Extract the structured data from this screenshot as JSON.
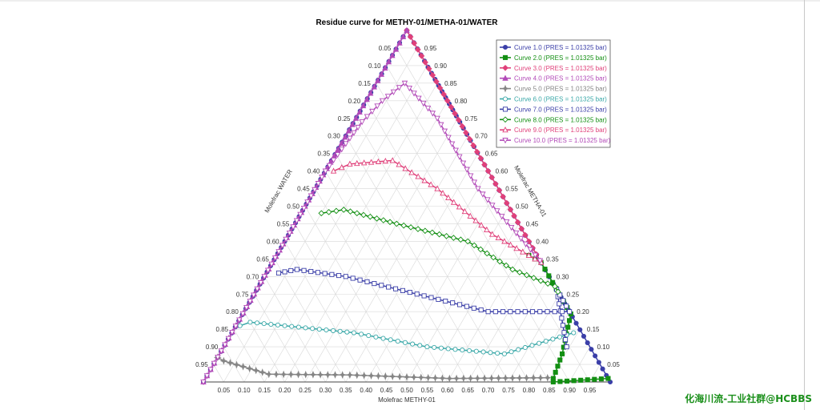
{
  "watermark": "化海川流-工业社群@HCBBS",
  "chart_data": {
    "type": "ternary-line",
    "title": "Residue curve for METHY-01/METHA-01/WATER",
    "xlabel": "Molefrac METHY-01",
    "left_axis_label": "Molefrac WATER",
    "right_axis_label": "Molefrac METHA-01",
    "bottom_ticks": [
      "0.05",
      "0.10",
      "0.15",
      "0.20",
      "0.25",
      "0.30",
      "0.35",
      "0.40",
      "0.45",
      "0.50",
      "0.55",
      "0.60",
      "0.65",
      "0.70",
      "0.75",
      "0.80",
      "0.85",
      "0.90",
      "0.95"
    ],
    "left_ticks": [
      "0.05",
      "0.10",
      "0.15",
      "0.20",
      "0.25",
      "0.30",
      "0.35",
      "0.40",
      "0.45",
      "0.50",
      "0.55",
      "0.60",
      "0.65",
      "0.70",
      "0.75",
      "0.80",
      "0.85",
      "0.90",
      "0.95"
    ],
    "right_ticks": [
      "0.05",
      "0.10",
      "0.15",
      "0.20",
      "0.25",
      "0.30",
      "0.35",
      "0.40",
      "0.45",
      "0.50",
      "0.55",
      "0.60",
      "0.65",
      "0.70",
      "0.75",
      "0.80",
      "0.85",
      "0.90",
      "0.95"
    ],
    "grid": true,
    "legend_position": "top-right",
    "series": [
      {
        "name": "Curve  1.0 (PRES = 1.01325 bar)",
        "color": "#3b3fa8",
        "marker": "circle",
        "fill": true,
        "points": [
          [
            1,
            0,
            0
          ],
          [
            0.87,
            0.13,
            0
          ],
          [
            0.74,
            0.26,
            0
          ],
          [
            0.662,
            0.338,
            0
          ],
          [
            0.638,
            0.362,
            0
          ],
          [
            0.4,
            0.6,
            0
          ],
          [
            0,
            1,
            0
          ],
          [
            0,
            0.4,
            0.6
          ],
          [
            0,
            0,
            1
          ]
        ]
      },
      {
        "name": "Curve  2.0 (PRES = 1.01325 bar)",
        "color": "#138f13",
        "marker": "square",
        "fill": true,
        "points": [
          [
            0.99,
            0.01,
            0
          ],
          [
            0.86,
            0,
            0.14
          ],
          [
            0.855,
            0.01,
            0.135
          ],
          [
            0.842,
            0.08,
            0.078
          ],
          [
            0.833,
            0.2,
            -0.033
          ],
          [
            0.836,
            0.33,
            0
          ],
          [
            0.66,
            0.34,
            0
          ],
          [
            0.62,
            0.36,
            0.02
          ]
        ]
      },
      {
        "name": "Curve  3.0 (PRES = 1.01325 bar)",
        "color": "#e0407a",
        "marker": "diamond",
        "fill": true,
        "points": [
          [
            0.655,
            0.345,
            0
          ],
          [
            0.4,
            0.6,
            0
          ],
          [
            0.2,
            0.8,
            0
          ],
          [
            0,
            1,
            0
          ]
        ]
      },
      {
        "name": "Curve  4.0 (PRES = 1.01325 bar)",
        "color": "#b24ab8",
        "marker": "triangle",
        "fill": true,
        "points": [
          [
            0,
            0,
            1
          ],
          [
            0,
            0.5,
            0.5
          ],
          [
            0,
            1,
            0
          ]
        ]
      },
      {
        "name": "Curve  5.0 (PRES = 1.01325 bar)",
        "color": "#858585",
        "marker": "star",
        "fill": true,
        "points": [
          [
            0.84,
            0.012,
            0.148
          ],
          [
            0.6,
            0.01,
            0.39
          ],
          [
            0.35,
            0.02,
            0.63
          ],
          [
            0.15,
            0.022,
            0.828
          ],
          [
            0.02,
            0.06,
            0.92
          ],
          [
            0,
            0.07,
            0.93
          ]
        ]
      },
      {
        "name": "Curve  6.0 (PRES = 1.01325 bar)",
        "color": "#3aa8a8",
        "marker": "circle",
        "fill": false,
        "points": [
          [
            0.84,
            0.14,
            0.02
          ],
          [
            0.7,
            0.08,
            0.22
          ],
          [
            0.5,
            0.1,
            0.4
          ],
          [
            0.3,
            0.14,
            0.56
          ],
          [
            0.12,
            0.16,
            0.72
          ],
          [
            0.03,
            0.17,
            0.8
          ],
          [
            0.01,
            0.16,
            0.83
          ]
        ]
      },
      {
        "name": "Curve  7.0 (PRES = 1.01325 bar)",
        "color": "#3b3fa8",
        "marker": "square",
        "fill": false,
        "points": [
          [
            0.843,
            0.1,
            0.057
          ],
          [
            0.84,
            0.3,
            -0.14
          ],
          [
            0.8,
            0.2,
            0.0
          ],
          [
            0.6,
            0.2,
            0.2
          ],
          [
            0.4,
            0.25,
            0.35
          ],
          [
            0.2,
            0.3,
            0.5
          ],
          [
            0.07,
            0.32,
            0.61
          ],
          [
            0.03,
            0.31,
            0.66
          ]
        ]
      },
      {
        "name": "Curve  8.0 (PRES = 1.01325 bar)",
        "color": "#138f13",
        "marker": "diamond",
        "fill": false,
        "points": [
          [
            0.84,
            0.29,
            -0.13
          ],
          [
            0.75,
            0.28,
            -0.03
          ],
          [
            0.6,
            0.32,
            0.08
          ],
          [
            0.45,
            0.4,
            0.15
          ],
          [
            0.25,
            0.45,
            0.3
          ],
          [
            0.1,
            0.49,
            0.41
          ],
          [
            0.05,
            0.48,
            0.47
          ]
        ]
      },
      {
        "name": "Curve  9.0 (PRES = 1.01325 bar)",
        "color": "#e0407a",
        "marker": "triangle",
        "fill": false,
        "points": [
          [
            0.66,
            0.34,
            0
          ],
          [
            0.5,
            0.42,
            0.08
          ],
          [
            0.3,
            0.55,
            0.15
          ],
          [
            0.15,
            0.63,
            0.22
          ],
          [
            0.05,
            0.62,
            0.33
          ],
          [
            0.02,
            0.6,
            0.38
          ]
        ]
      },
      {
        "name": "Curve  10.0 (PRES = 1.01325 bar)",
        "color": "#b24ab8",
        "marker": "triangle-down",
        "fill": false,
        "points": [
          [
            0.655,
            0.345,
            0
          ],
          [
            0.4,
            0.55,
            0.05
          ],
          [
            0.2,
            0.75,
            0.05
          ],
          [
            0.07,
            0.85,
            0.08
          ],
          [
            0.04,
            0.8,
            0.16
          ],
          [
            0.02,
            0.74,
            0.24
          ],
          [
            0,
            0.6,
            0.4
          ],
          [
            0,
            0.3,
            0.7
          ],
          [
            0,
            0,
            1
          ]
        ]
      }
    ]
  }
}
